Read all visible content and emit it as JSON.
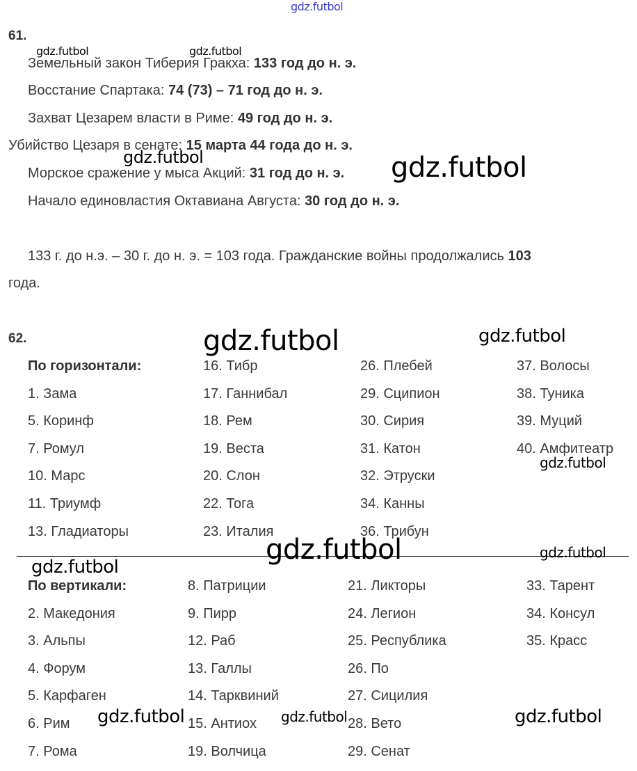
{
  "watermark": "gdz.futbol",
  "task61": {
    "number": "61.",
    "events": [
      {
        "label": "Земельный закон Тиберия Гракха: ",
        "date": "133 год до н. э."
      },
      {
        "label": "Восстание Спартака: ",
        "date": "74 (73) – 71 год до н. э."
      },
      {
        "label": "Захват Цезарем власти в Риме: ",
        "date": "49 год до н. э."
      },
      {
        "label": "Убийство Цезаря в сенате: ",
        "date": "15 марта 44 года до н. э."
      },
      {
        "label": "Морское сражение у мыса Акций: ",
        "date": "31 год до н. э."
      },
      {
        "label": "Начало единовластия Октавиана Августа: ",
        "date": "30 год до н. э."
      }
    ],
    "calc_text": "133 г. до н.э. – 30 г. до н. э. = 103 года. Гражданские войны продолжались ",
    "calc_bold": "103",
    "calc_end": "года."
  },
  "task62": {
    "number": "62.",
    "horizontal": {
      "heading": "По горизонтали:",
      "columns": [
        [
          "1. Зама",
          "5. Коринф",
          "7. Ромул",
          "10. Марс",
          "11. Триумф",
          "13. Гладиаторы"
        ],
        [
          "16. Тибр",
          "17. Ганнибал",
          "18. Рем",
          "19. Веста",
          "20. Слон",
          "22. Тога",
          "23. Италия"
        ],
        [
          "26. Плебей",
          "29. Сципион",
          "30. Сирия",
          "31. Катон",
          "32. Этруски",
          "34. Канны",
          "36. Трибун"
        ],
        [
          "37. Волосы",
          "38. Туника",
          "39. Муций",
          "40. Амфитеатр"
        ]
      ]
    },
    "vertical": {
      "heading": "По вертикали:",
      "columns": [
        [
          "2. Македония",
          "3. Альпы",
          "4. Форум",
          "5. Карфаген",
          "6. Рим",
          "7. Рома"
        ],
        [
          "8. Патриции",
          "9. Пирр",
          "12. Раб",
          "13. Галлы",
          "14. Тарквиний",
          "15. Антиох",
          "19. Волчица"
        ],
        [
          "21. Ликторы",
          "24. Легион",
          "25. Республика",
          "26. По",
          "27. Сицилия",
          "28. Вето",
          "29. Сенат"
        ],
        [
          "33. Тарент",
          "34. Консул",
          "35. Красс"
        ]
      ]
    }
  }
}
